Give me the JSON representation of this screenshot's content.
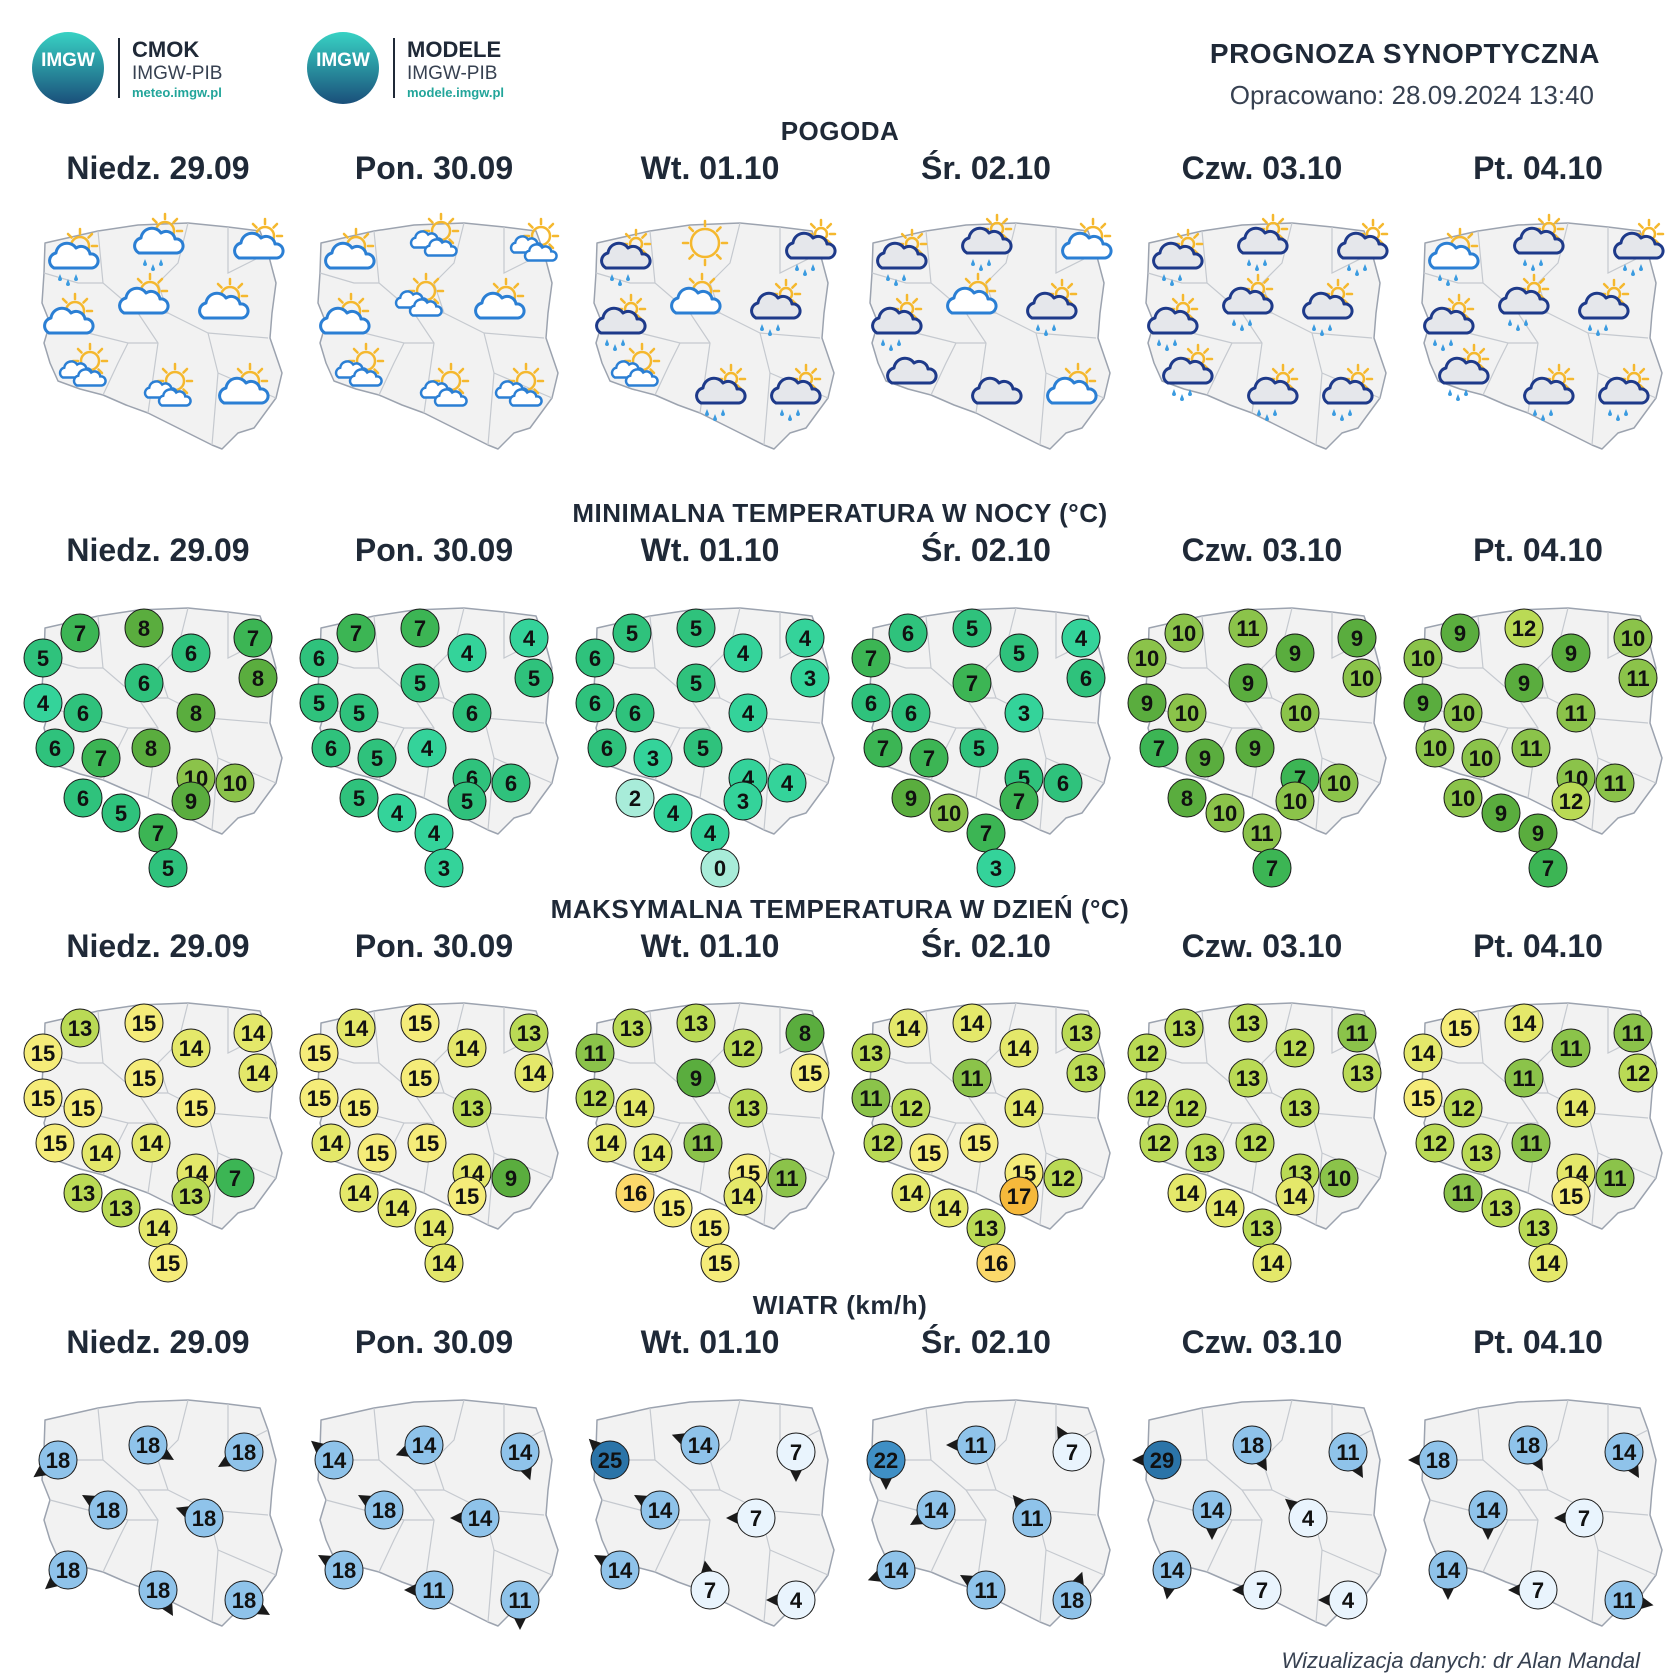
{
  "header": {
    "logos": [
      {
        "badge": "IMGW",
        "name": "CMOK",
        "org": "IMGW-PIB",
        "url": "meteo.imgw.pl"
      },
      {
        "badge": "IMGW",
        "name": "MODELE",
        "org": "IMGW-PIB",
        "url": "modele.imgw.pl"
      }
    ],
    "title": "PROGNOZA SYNOPTYCZNA",
    "date": "Opracowano: 28.09.2024 13:40"
  },
  "days": [
    "Niedz. 29.09",
    "Pon. 30.09",
    "Wt. 01.10",
    "Śr. 02.10",
    "Czw. 03.10",
    "Pt. 04.10"
  ],
  "colors": {
    "map_fill": "#f2f2f2",
    "map_border": "#9ca3af",
    "cloud_light": "#ffffff",
    "cloud_line": "#2b7fd4",
    "cloud_dark_line": "#1e3a8a",
    "sun": "#f5b82e",
    "rain": "#3b9be0",
    "wind_arrow": "#1a1a1a"
  },
  "sections": {
    "weather": {
      "title": "POGODA",
      "maps": [
        [
          "partly-rain-icon",
          "cloud-sun-rain-icon",
          "cloud-sun-icon",
          "cloud-sun-icon",
          "cloud-sun-icon",
          "cloud-sun-icon",
          "partly-cloudy-icon",
          "partly-cloudy-icon",
          "cloud-sun-icon"
        ],
        [
          "cloud-sun-icon",
          "partly-cloudy-icon",
          "partly-cloudy-icon",
          "cloud-sun-icon",
          "partly-cloudy-icon",
          "cloud-sun-icon",
          "partly-cloudy-icon",
          "partly-cloudy-icon",
          "partly-cloudy-icon"
        ],
        [
          "rain-icon",
          "sunny-icon",
          "rain-icon",
          "heavy-cloud-rain-icon",
          "cloud-sun-icon",
          "heavy-cloud-rain-icon",
          "partly-cloudy-icon",
          "heavy-cloud-rain-icon",
          "heavy-cloud-rain-icon"
        ],
        [
          "rain-icon",
          "rain-icon",
          "cloud-sun-icon",
          "heavy-cloud-rain-icon",
          "cloud-sun-icon",
          "heavy-cloud-rain-icon",
          "heavy-cloud-icon",
          "heavy-cloud-icon",
          "cloud-sun-icon"
        ],
        [
          "rain-icon",
          "rain-icon",
          "rain-icon",
          "rain-icon",
          "heavy-cloud-rain-icon",
          "rain-icon",
          "heavy-cloud-rain-icon",
          "rain-icon",
          "rain-icon"
        ],
        [
          "cloud-sun-rain-icon",
          "rain-icon",
          "rain-icon",
          "rain-icon",
          "heavy-cloud-rain-icon",
          "rain-icon",
          "rain-icon",
          "heavy-cloud-rain-icon",
          "rain-icon"
        ]
      ]
    },
    "tmin": {
      "title": "MINIMALNA TEMPERATURA W NOCY (°C)",
      "maps": [
        [
          5,
          7,
          8,
          6,
          7,
          4,
          6,
          6,
          8,
          8,
          6,
          7,
          8,
          10,
          6,
          5,
          7,
          9,
          10,
          5
        ],
        [
          6,
          7,
          7,
          4,
          4,
          5,
          5,
          5,
          6,
          5,
          6,
          5,
          4,
          6,
          5,
          4,
          4,
          5,
          6,
          3
        ],
        [
          6,
          5,
          5,
          4,
          4,
          6,
          6,
          5,
          4,
          3,
          6,
          3,
          5,
          4,
          2,
          4,
          4,
          3,
          4,
          0
        ],
        [
          7,
          6,
          5,
          5,
          4,
          6,
          6,
          7,
          3,
          6,
          7,
          7,
          5,
          5,
          9,
          10,
          7,
          7,
          6,
          3
        ],
        [
          10,
          10,
          11,
          9,
          9,
          9,
          10,
          9,
          10,
          10,
          7,
          9,
          9,
          7,
          8,
          10,
          11,
          10,
          10,
          7
        ],
        [
          10,
          9,
          12,
          9,
          10,
          9,
          10,
          9,
          11,
          11,
          10,
          10,
          11,
          10,
          10,
          9,
          9,
          12,
          11,
          7
        ]
      ]
    },
    "tmax": {
      "title": "MAKSYMALNA TEMPERATURA W DZIEŃ (°C)",
      "maps": [
        [
          15,
          13,
          15,
          14,
          14,
          15,
          15,
          15,
          15,
          14,
          15,
          14,
          14,
          14,
          13,
          13,
          14,
          13,
          7,
          15
        ],
        [
          15,
          14,
          15,
          14,
          13,
          15,
          15,
          15,
          13,
          14,
          14,
          15,
          15,
          14,
          14,
          14,
          14,
          15,
          9,
          14
        ],
        [
          11,
          13,
          13,
          12,
          8,
          12,
          14,
          9,
          13,
          15,
          14,
          14,
          11,
          15,
          16,
          15,
          15,
          14,
          11,
          15
        ],
        [
          13,
          14,
          14,
          14,
          13,
          11,
          12,
          11,
          14,
          13,
          12,
          15,
          15,
          15,
          14,
          14,
          13,
          17,
          12,
          16
        ],
        [
          12,
          13,
          13,
          12,
          11,
          12,
          12,
          13,
          13,
          13,
          12,
          13,
          12,
          13,
          14,
          14,
          13,
          14,
          10,
          14
        ],
        [
          14,
          15,
          14,
          11,
          11,
          15,
          12,
          11,
          14,
          12,
          12,
          13,
          11,
          14,
          11,
          13,
          13,
          15,
          11,
          14
        ]
      ]
    },
    "wind": {
      "title": "WIATR (km/h)",
      "maps": [
        [
          {
            "speed": 18,
            "dir": -145
          },
          {
            "speed": 18,
            "dir": -30
          },
          {
            "speed": 18,
            "dir": -150
          },
          {
            "speed": 18,
            "dir": -210
          },
          {
            "speed": 18,
            "dir": -200
          },
          {
            "speed": 18,
            "dir": -140
          },
          {
            "speed": 18,
            "dir": -60
          },
          {
            "speed": 18,
            "dir": -30
          }
        ],
        [
          {
            "speed": 14,
            "dir": -220
          },
          {
            "speed": 14,
            "dir": -160
          },
          {
            "speed": 14,
            "dir": -70
          },
          {
            "speed": 18,
            "dir": -210
          },
          {
            "speed": 14,
            "dir": -180
          },
          {
            "speed": 18,
            "dir": -210
          },
          {
            "speed": 11,
            "dir": -180
          },
          {
            "speed": 11,
            "dir": -90
          }
        ],
        [
          {
            "speed": 25,
            "dir": -225
          },
          {
            "speed": 14,
            "dir": -200
          },
          {
            "speed": 7,
            "dir": -90
          },
          {
            "speed": 14,
            "dir": -210
          },
          {
            "speed": 7,
            "dir": -180
          },
          {
            "speed": 14,
            "dir": -210
          },
          {
            "speed": 7,
            "dir": -260
          },
          {
            "speed": 4,
            "dir": -180
          }
        ],
        [
          {
            "speed": 22,
            "dir": -90
          },
          {
            "speed": 11,
            "dir": -180
          },
          {
            "speed": 7,
            "dir": -240
          },
          {
            "speed": 14,
            "dir": -150
          },
          {
            "speed": 11,
            "dir": -230
          },
          {
            "speed": 14,
            "dir": -160
          },
          {
            "speed": 11,
            "dir": -210
          },
          {
            "speed": 18,
            "dir": -290
          }
        ],
        [
          {
            "speed": 29,
            "dir": -180
          },
          {
            "speed": 18,
            "dir": -60
          },
          {
            "speed": 11,
            "dir": -60
          },
          {
            "speed": 14,
            "dir": -90
          },
          {
            "speed": 4,
            "dir": -220
          },
          {
            "speed": 14,
            "dir": -100
          },
          {
            "speed": 7,
            "dir": -180
          },
          {
            "speed": 4,
            "dir": -180
          }
        ],
        [
          {
            "speed": 18,
            "dir": -180
          },
          {
            "speed": 18,
            "dir": -60
          },
          {
            "speed": 14,
            "dir": -60
          },
          {
            "speed": 14,
            "dir": -90
          },
          {
            "speed": 7,
            "dir": -180
          },
          {
            "speed": 14,
            "dir": -90
          },
          {
            "speed": 7,
            "dir": -180
          },
          {
            "speed": 11,
            "dir": -10
          }
        ]
      ]
    }
  },
  "credit": "Wizualizacja danych: dr Alan Mandal"
}
